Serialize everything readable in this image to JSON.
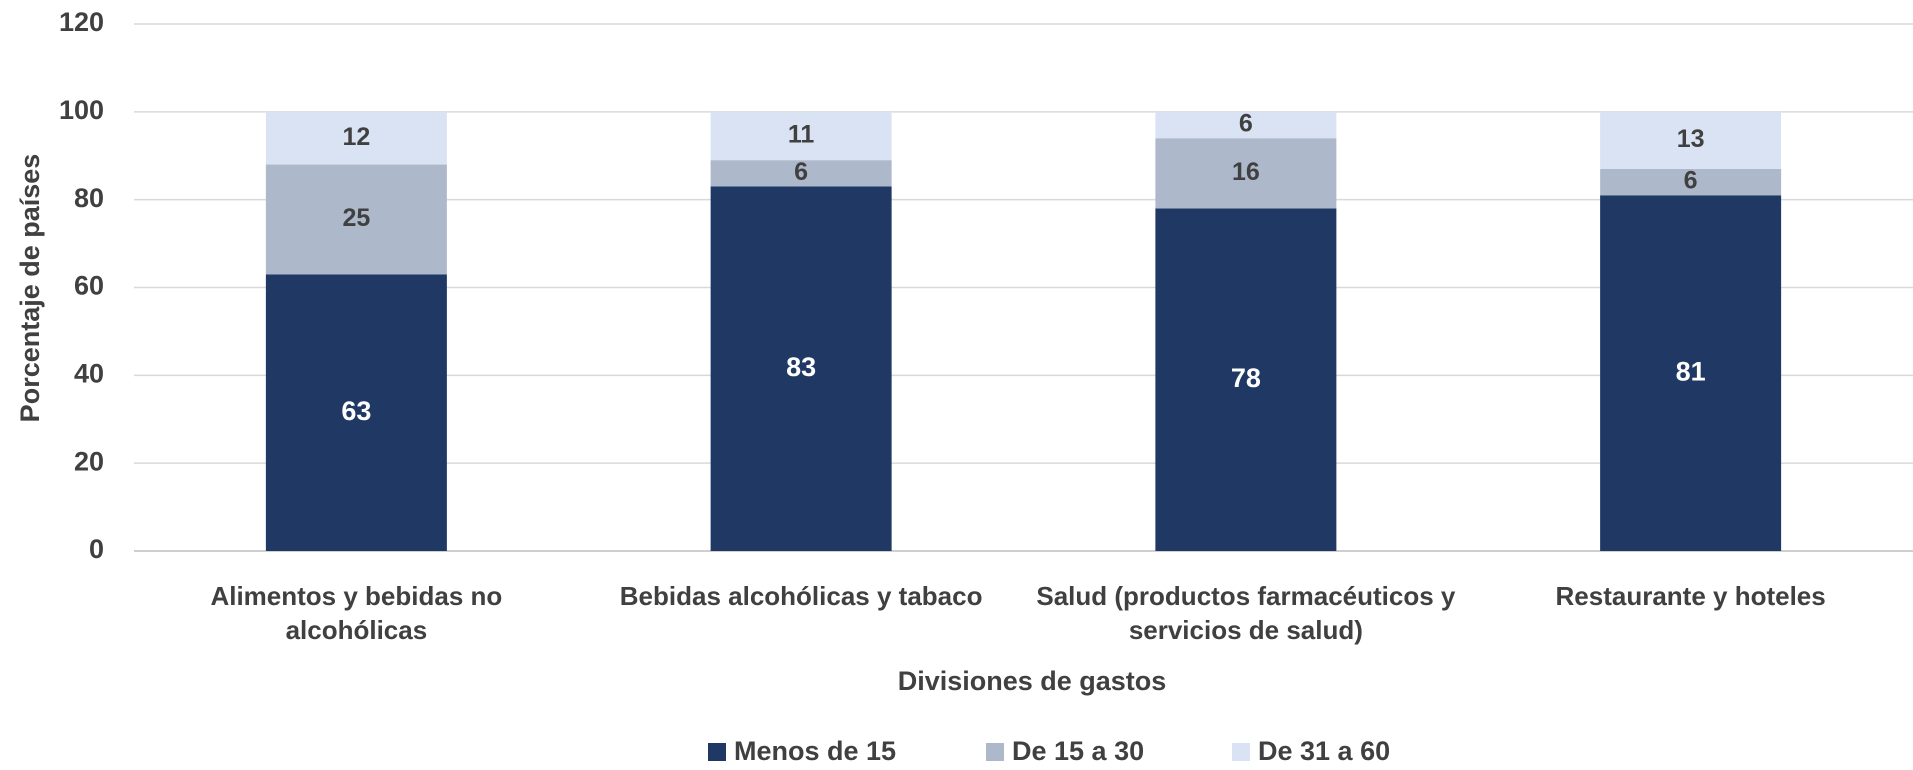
{
  "chart_data": {
    "type": "stacked_bar",
    "x_label": "Divisiones de gastos",
    "y_label": "Porcentaje de países",
    "categories": [
      "Alimentos y bebidas no alcohólicas",
      "Bebidas alcohólicas y tabaco",
      "Salud (productos farmacéuticos y servicios de salud)",
      "Restaurante y hoteles"
    ],
    "series": [
      {
        "name": "Menos de 15",
        "color": "#203864",
        "values": [
          63,
          83,
          78,
          81
        ]
      },
      {
        "name": "De 15 a 30",
        "color": "#adb9ca",
        "values": [
          25,
          6,
          16,
          6
        ]
      },
      {
        "name": "De 31 a 60",
        "color": "#dae3f3",
        "values": [
          12,
          11,
          6,
          13
        ]
      }
    ],
    "ylim": [
      0,
      120
    ],
    "yticks": [
      0,
      20,
      40,
      60,
      80,
      100,
      120
    ],
    "grid": true,
    "legend": "bottom"
  }
}
